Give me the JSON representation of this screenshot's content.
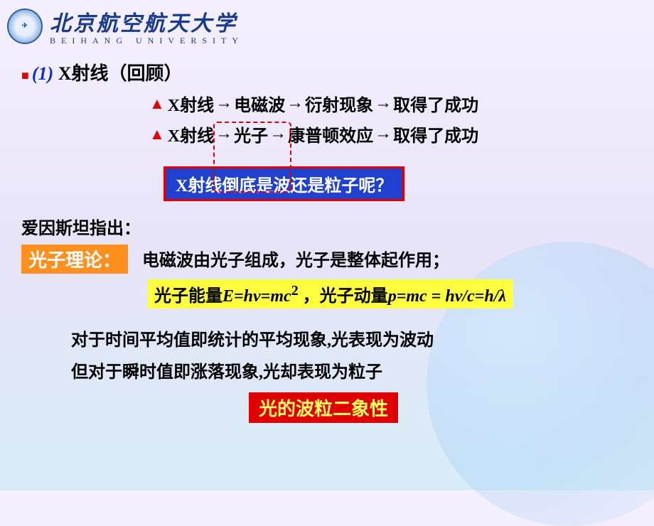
{
  "header": {
    "univ_cn": "北京航空航天大学",
    "univ_en": "BEIHANG UNIVERSITY"
  },
  "line1": {
    "bullet": "■",
    "num": "(1)",
    "text": " X射线（回顾）"
  },
  "chain1": {
    "triangle": "▲",
    "a": "X射线",
    "b": "电磁波",
    "c": "衍射现象",
    "d": "取得了成功",
    "arrow": "→"
  },
  "chain2": {
    "triangle": "▲",
    "a": "X射线",
    "b": "光子",
    "c": "康普顿效应",
    "d": "取得了成功",
    "arrow": "→"
  },
  "question_box": "X射线倒底是波还是粒子呢？",
  "einstein": "爱因斯坦指出：",
  "photon_theory_label": "光子理论：",
  "photon_theory_text": "电磁波由光子组成，光子是整体起作用；",
  "formula": {
    "prefix": "光子能量",
    "eq1": "E=hv=mc",
    "sup1": "2",
    "mid": " ，光子动量",
    "eq2": "p=mc = hv/c=h/λ"
  },
  "body1": "对于时间平均值即统计的平均现象,光表现为波动",
  "body2": "但对于瞬时值即涨落现象,光却表现为粒子",
  "conclusion": "光的波粒二象性",
  "colors": {
    "red": "#e00000",
    "blue": "#1030c0",
    "blue_box_bg": "#2040d0",
    "orange": "#ff9020",
    "yellow": "#ffff40",
    "univ_blue": "#1a3a8a"
  }
}
